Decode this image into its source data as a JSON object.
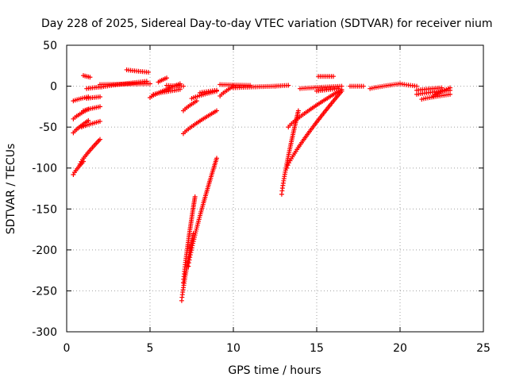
{
  "chart_data": {
    "type": "scatter",
    "title": "Day 228 of 2025, Sidereal Day-to-day VTEC variation (SDTVAR) for receiver nium",
    "xlabel": "GPS time / hours",
    "ylabel": "SDTVAR / TECUs",
    "xlim": [
      0,
      25
    ],
    "ylim": [
      -300,
      50
    ],
    "xticks": [
      0,
      5,
      10,
      15,
      20,
      25
    ],
    "yticks": [
      -300,
      -250,
      -200,
      -150,
      -100,
      -50,
      0,
      50
    ],
    "grid": true,
    "marker": "+",
    "color": "#ff0000",
    "segments": [
      {
        "x": [
          0.4,
          1.0
        ],
        "y": [
          -108,
          -92
        ]
      },
      {
        "x": [
          0.8,
          2.0
        ],
        "y": [
          -95,
          -65
        ]
      },
      {
        "x": [
          0.4,
          1.3
        ],
        "y": [
          -57,
          -42
        ]
      },
      {
        "x": [
          0.9,
          2.0
        ],
        "y": [
          -50,
          -43
        ]
      },
      {
        "x": [
          0.4,
          1.3
        ],
        "y": [
          -40,
          -28
        ]
      },
      {
        "x": [
          1.0,
          2.0
        ],
        "y": [
          -30,
          -25
        ]
      },
      {
        "x": [
          0.4,
          1.3
        ],
        "y": [
          -18,
          -13
        ]
      },
      {
        "x": [
          1.2,
          2.0
        ],
        "y": [
          -15,
          -13
        ]
      },
      {
        "x": [
          1.0,
          1.4
        ],
        "y": [
          13,
          11
        ]
      },
      {
        "x": [
          1.2,
          2.0
        ],
        "y": [
          -3,
          -1
        ]
      },
      {
        "x": [
          2.0,
          5.0
        ],
        "y": [
          2,
          3
        ]
      },
      {
        "x": [
          2.1,
          4.8
        ],
        "y": [
          -1,
          6
        ]
      },
      {
        "x": [
          3.6,
          4.9
        ],
        "y": [
          20,
          17
        ]
      },
      {
        "x": [
          5.0,
          6.8
        ],
        "y": [
          -14,
          3
        ]
      },
      {
        "x": [
          5.2,
          6.8
        ],
        "y": [
          -10,
          -4
        ]
      },
      {
        "x": [
          5.5,
          6.0
        ],
        "y": [
          5,
          10
        ]
      },
      {
        "x": [
          6.0,
          7.0
        ],
        "y": [
          1,
          0
        ]
      },
      {
        "x": [
          6.9,
          7.6
        ],
        "y": [
          -262,
          -180
        ]
      },
      {
        "x": [
          7.0,
          7.7
        ],
        "y": [
          -240,
          -135
        ]
      },
      {
        "x": [
          7.3,
          9.0
        ],
        "y": [
          -220,
          -88
        ]
      },
      {
        "x": [
          7.0,
          7.8
        ],
        "y": [
          -30,
          -18
        ]
      },
      {
        "x": [
          7.5,
          9.0
        ],
        "y": [
          -15,
          -6
        ]
      },
      {
        "x": [
          7.0,
          9.0
        ],
        "y": [
          -58,
          -30
        ]
      },
      {
        "x": [
          8.0,
          9.0
        ],
        "y": [
          -8,
          -5
        ]
      },
      {
        "x": [
          9.2,
          10.0
        ],
        "y": [
          -12,
          0
        ]
      },
      {
        "x": [
          9.2,
          11.0
        ],
        "y": [
          2,
          1
        ]
      },
      {
        "x": [
          10.0,
          12.5
        ],
        "y": [
          -2,
          0
        ]
      },
      {
        "x": [
          12.5,
          13.3
        ],
        "y": [
          0,
          1
        ]
      },
      {
        "x": [
          12.9,
          13.9
        ],
        "y": [
          -132,
          -30
        ]
      },
      {
        "x": [
          13.2,
          16.5
        ],
        "y": [
          -100,
          -6
        ]
      },
      {
        "x": [
          13.3,
          16.5
        ],
        "y": [
          -50,
          -4
        ]
      },
      {
        "x": [
          14.0,
          16.5
        ],
        "y": [
          -3,
          0
        ]
      },
      {
        "x": [
          15.0,
          16.3
        ],
        "y": [
          -6,
          -3
        ]
      },
      {
        "x": [
          15.1,
          16.0
        ],
        "y": [
          12,
          12
        ]
      },
      {
        "x": [
          17.0,
          17.8
        ],
        "y": [
          0,
          0
        ]
      },
      {
        "x": [
          18.2,
          20.0
        ],
        "y": [
          -3,
          3
        ]
      },
      {
        "x": [
          20.0,
          21.0
        ],
        "y": [
          3,
          0
        ]
      },
      {
        "x": [
          21.0,
          22.5
        ],
        "y": [
          -5,
          -2
        ]
      },
      {
        "x": [
          21.3,
          23.0
        ],
        "y": [
          -16,
          -10
        ]
      },
      {
        "x": [
          21.0,
          23.0
        ],
        "y": [
          -10,
          -5
        ]
      },
      {
        "x": [
          22.0,
          23.0
        ],
        "y": [
          -12,
          -2
        ]
      }
    ]
  }
}
